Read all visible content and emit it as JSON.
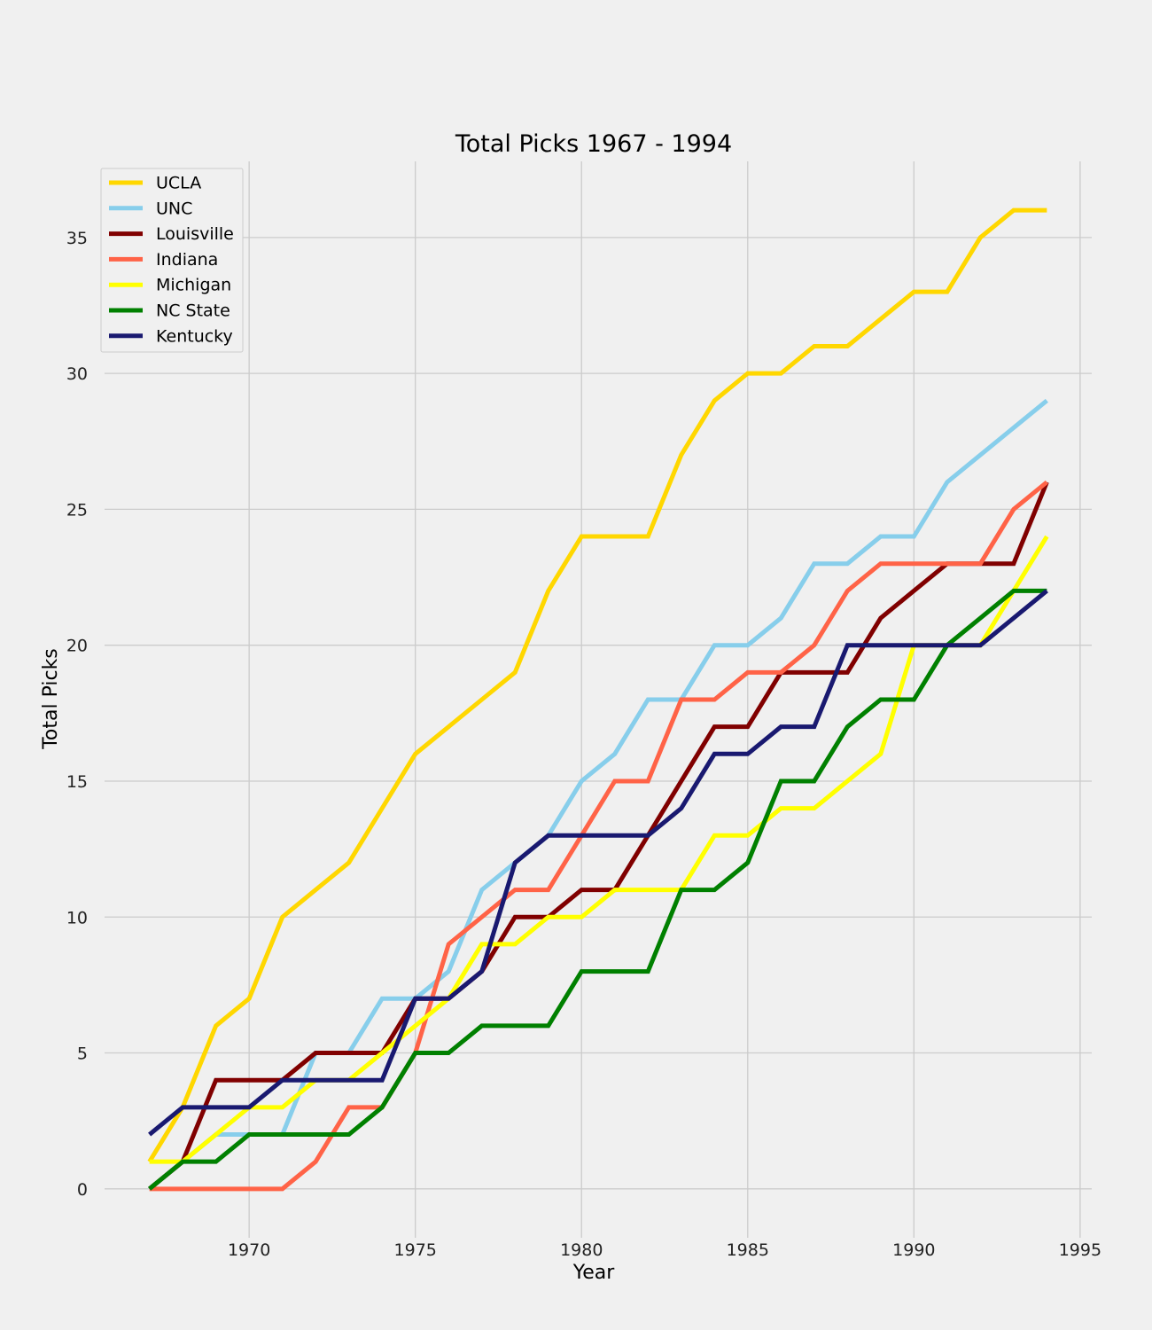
{
  "chart_data": {
    "type": "line",
    "title": "Total Picks 1967 - 1994",
    "xlabel": "Year",
    "ylabel": "Total Picks",
    "x": [
      1967,
      1968,
      1969,
      1970,
      1971,
      1972,
      1973,
      1974,
      1975,
      1976,
      1977,
      1978,
      1979,
      1980,
      1981,
      1982,
      1983,
      1984,
      1985,
      1986,
      1987,
      1988,
      1989,
      1990,
      1991,
      1992,
      1993,
      1994
    ],
    "xlim": [
      1965.65,
      1995.35
    ],
    "ylim": [
      -1.8,
      37.8
    ],
    "xticks": [
      1970,
      1975,
      1980,
      1985,
      1990,
      1995
    ],
    "yticks": [
      0,
      5,
      10,
      15,
      20,
      25,
      30,
      35
    ],
    "grid": true,
    "legend_position": "upper-left",
    "series": [
      {
        "name": "UCLA",
        "color": "#FFD700",
        "values": [
          1,
          3,
          6,
          7,
          10,
          11,
          12,
          14,
          16,
          17,
          18,
          19,
          22,
          24,
          24,
          24,
          27,
          29,
          30,
          30,
          31,
          31,
          32,
          33,
          33,
          35,
          36,
          36
        ]
      },
      {
        "name": "UNC",
        "color": "#87CEEB",
        "values": [
          0,
          1,
          2,
          2,
          2,
          5,
          5,
          7,
          7,
          8,
          11,
          12,
          13,
          15,
          16,
          18,
          18,
          20,
          20,
          21,
          23,
          23,
          24,
          24,
          26,
          27,
          28,
          29
        ]
      },
      {
        "name": "Louisville",
        "color": "#800000",
        "values": [
          0,
          1,
          4,
          4,
          4,
          5,
          5,
          5,
          7,
          7,
          8,
          10,
          10,
          11,
          11,
          13,
          15,
          17,
          17,
          19,
          19,
          19,
          21,
          22,
          23,
          23,
          23,
          26
        ]
      },
      {
        "name": "Indiana",
        "color": "#FF6347",
        "values": [
          0,
          0,
          0,
          0,
          0,
          1,
          3,
          3,
          5,
          9,
          10,
          11,
          11,
          13,
          15,
          15,
          18,
          18,
          19,
          19,
          20,
          22,
          23,
          23,
          23,
          23,
          25,
          26
        ]
      },
      {
        "name": "Michigan",
        "color": "#FFFF00",
        "values": [
          1,
          1,
          2,
          3,
          3,
          4,
          4,
          5,
          6,
          7,
          9,
          9,
          10,
          10,
          11,
          11,
          11,
          13,
          13,
          14,
          14,
          15,
          16,
          20,
          20,
          20,
          22,
          24
        ]
      },
      {
        "name": "NC State",
        "color": "#008000",
        "values": [
          0,
          1,
          1,
          2,
          2,
          2,
          2,
          3,
          5,
          5,
          6,
          6,
          6,
          8,
          8,
          8,
          11,
          11,
          12,
          15,
          15,
          17,
          18,
          18,
          20,
          21,
          22,
          22
        ]
      },
      {
        "name": "Kentucky",
        "color": "#191970",
        "values": [
          2,
          3,
          3,
          3,
          4,
          4,
          4,
          4,
          7,
          7,
          8,
          12,
          13,
          13,
          13,
          13,
          14,
          16,
          16,
          17,
          17,
          20,
          20,
          20,
          20,
          20,
          21,
          22
        ]
      }
    ]
  }
}
